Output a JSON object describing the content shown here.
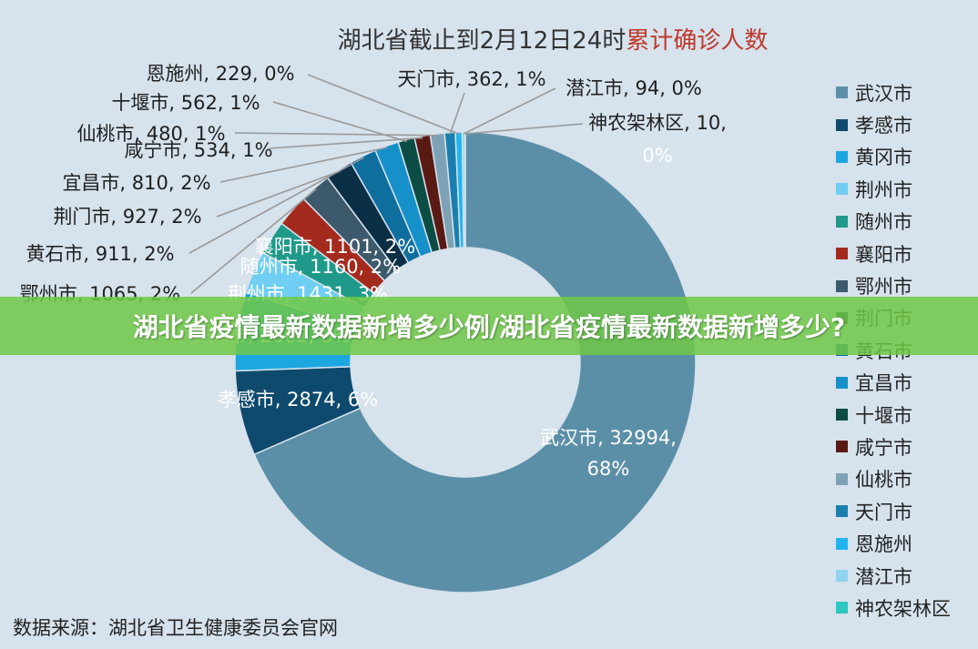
{
  "header": {
    "title_main": "湖北省截止到2月12日24时",
    "title_highlight": "累计确诊人数"
  },
  "banner": {
    "text": "湖北省疫情最新数据新增多少例/湖北省疫情最新数据新增多少?"
  },
  "footer": {
    "source": "数据来源：湖北省卫生健康委员会官网"
  },
  "chart_data": {
    "type": "pie",
    "donut": true,
    "title": "湖北省截止到2月12日24时累计确诊人数",
    "legend_position": "right",
    "slices": [
      {
        "label": "武汉市",
        "value": 32994,
        "percent": "68%",
        "color": "#5b8fa8",
        "label_text": "武汉市, 32994,",
        "label_text2": "68%"
      },
      {
        "label": "孝感市",
        "value": 2874,
        "percent": "6%",
        "color": "#0e4a6e",
        "label_text": "孝感市, 2874, 6%"
      },
      {
        "label": "黄冈市",
        "value": 2662,
        "percent": "6%",
        "color": "#1da7e0",
        "label_text": "黄冈市, 2662, 6%"
      },
      {
        "label": "荆州市",
        "value": 1431,
        "percent": "3%",
        "color": "#6fcef2",
        "label_text": "荆州市, 1431, 3%"
      },
      {
        "label": "随州市",
        "value": 1160,
        "percent": "2%",
        "color": "#1f9a8a",
        "label_text": "随州市, 1160, 2%"
      },
      {
        "label": "襄阳市",
        "value": 1101,
        "percent": "2%",
        "color": "#a52a1e",
        "label_text": "襄阳市, 1101, 2%"
      },
      {
        "label": "鄂州市",
        "value": 1065,
        "percent": "2%",
        "color": "#3c5a6b",
        "label_text": "鄂州市, 1065, 2%"
      },
      {
        "label": "荆门市",
        "value": 927,
        "percent": "2%",
        "color": "#0b2f45",
        "label_text": "荆门市, 927, 2%"
      },
      {
        "label": "黄石市",
        "value": 911,
        "percent": "2%",
        "color": "#0e6e9e",
        "label_text": "黄石市, 911, 2%"
      },
      {
        "label": "宜昌市",
        "value": 810,
        "percent": "2%",
        "color": "#1590c8",
        "label_text": "宜昌市, 810, 2%"
      },
      {
        "label": "十堰市",
        "value": 562,
        "percent": "1%",
        "color": "#0b4d45",
        "label_text": "十堰市, 562, 1%"
      },
      {
        "label": "咸宁市",
        "value": 534,
        "percent": "1%",
        "color": "#5a1a14",
        "label_text": "咸宁市, 534, 1%"
      },
      {
        "label": "仙桃市",
        "value": 480,
        "percent": "1%",
        "color": "#7ea2b5",
        "label_text": "仙桃市, 480, 1%"
      },
      {
        "label": "天门市",
        "value": 362,
        "percent": "1%",
        "color": "#1a7fae",
        "label_text": "天门市, 362, 1%"
      },
      {
        "label": "恩施州",
        "value": 229,
        "percent": "0%",
        "color": "#22b4ef",
        "label_text": "恩施州, 229, 0%"
      },
      {
        "label": "潜江市",
        "value": 94,
        "percent": "0%",
        "color": "#8fd3f0",
        "label_text": "潜江市, 94, 0%"
      },
      {
        "label": "神农架林区",
        "value": 10,
        "percent": "0%",
        "color": "#2cc7c0",
        "label_text": "神农架林区, 10,",
        "label_text2": "0%"
      }
    ]
  }
}
